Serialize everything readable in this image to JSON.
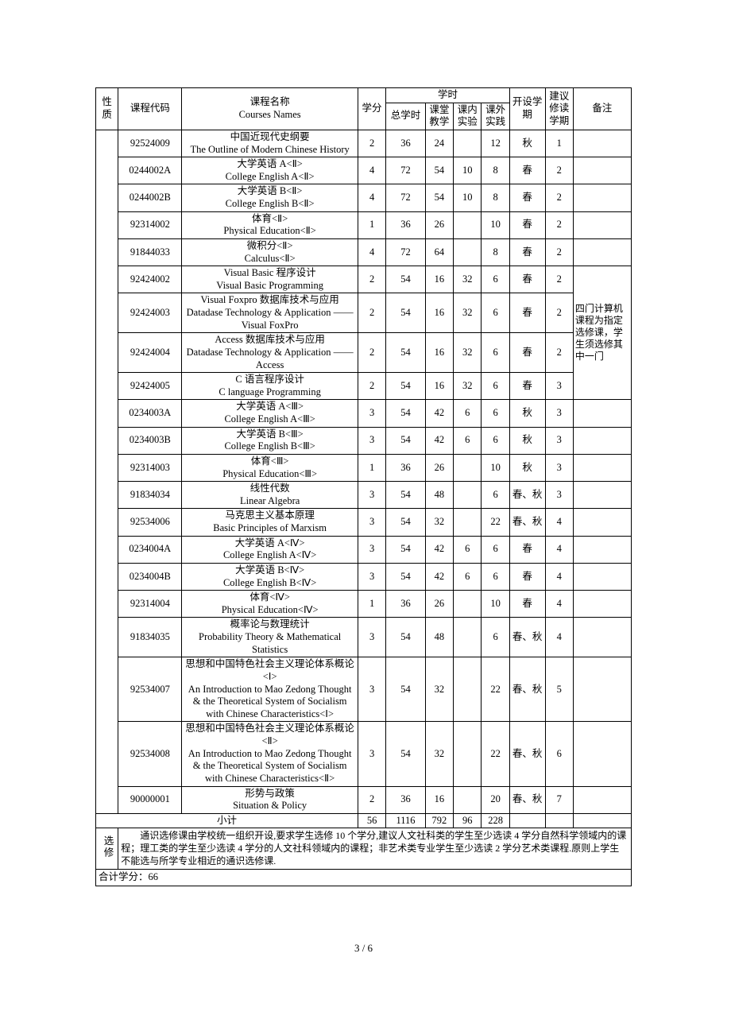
{
  "header": {
    "nature": "性质",
    "code": "课程代码",
    "name_cn": "课程名称",
    "name_en": "Courses Names",
    "credit": "学分",
    "hours_group": "学时",
    "total_hours": "总学时",
    "class_hours": "课堂教学",
    "lab_hours": "课内实验",
    "ext_hours": "课外实践",
    "semester": "开设学期",
    "suggest": "建议修读学期",
    "note": "备注"
  },
  "rows": [
    {
      "code": "92524009",
      "name": "中国近现代史纲要\nThe Outline of Modern Chinese History",
      "credit": "2",
      "total": "36",
      "class": "24",
      "lab": "",
      "ext": "12",
      "sem": "秋",
      "sug": "1",
      "note": ""
    },
    {
      "code": "0244002A",
      "name": "大学英语 A<Ⅱ>\nCollege English A<Ⅱ>",
      "credit": "4",
      "total": "72",
      "class": "54",
      "lab": "10",
      "ext": "8",
      "sem": "春",
      "sug": "2",
      "note": ""
    },
    {
      "code": "0244002B",
      "name": "大学英语 B<Ⅱ>\nCollege English B<Ⅱ>",
      "credit": "4",
      "total": "72",
      "class": "54",
      "lab": "10",
      "ext": "8",
      "sem": "春",
      "sug": "2",
      "note": ""
    },
    {
      "code": "92314002",
      "name": "体育<Ⅱ>\nPhysical Education<Ⅱ>",
      "credit": "1",
      "total": "36",
      "class": "26",
      "lab": "",
      "ext": "10",
      "sem": "春",
      "sug": "2",
      "note": ""
    },
    {
      "code": "91844033",
      "name": "微积分<Ⅱ>\nCalculus<Ⅱ>",
      "credit": "4",
      "total": "72",
      "class": "64",
      "lab": "",
      "ext": "8",
      "sem": "春",
      "sug": "2",
      "note": ""
    },
    {
      "code": "92424002",
      "name": "Visual Basic 程序设计\nVisual Basic Programming",
      "credit": "2",
      "total": "54",
      "class": "16",
      "lab": "32",
      "ext": "6",
      "sem": "春",
      "sug": "2",
      "note": ""
    },
    {
      "code": "92424003",
      "name": "Visual Foxpro 数据库技术与应用\nDatadase Technology & Application ——Visual FoxPro",
      "credit": "2",
      "total": "54",
      "class": "16",
      "lab": "32",
      "ext": "6",
      "sem": "春",
      "sug": "2",
      "note": "group"
    },
    {
      "code": "92424004",
      "name": "Access 数据库技术与应用\nDatadase Technology & Application ——Access",
      "credit": "2",
      "total": "54",
      "class": "16",
      "lab": "32",
      "ext": "6",
      "sem": "春",
      "sug": "2",
      "note": "group"
    },
    {
      "code": "92424005",
      "name": "C 语言程序设计\nC language Programming",
      "credit": "2",
      "total": "54",
      "class": "16",
      "lab": "32",
      "ext": "6",
      "sem": "春",
      "sug": "3",
      "note": "group"
    },
    {
      "code": "0234003A",
      "name": "大学英语 A<Ⅲ>\nCollege English A<Ⅲ>",
      "credit": "3",
      "total": "54",
      "class": "42",
      "lab": "6",
      "ext": "6",
      "sem": "秋",
      "sug": "3",
      "note": ""
    },
    {
      "code": "0234003B",
      "name": "大学英语 B<Ⅲ>\nCollege English B<Ⅲ>",
      "credit": "3",
      "total": "54",
      "class": "42",
      "lab": "6",
      "ext": "6",
      "sem": "秋",
      "sug": "3",
      "note": ""
    },
    {
      "code": "92314003",
      "name": "体育<Ⅲ>\nPhysical Education<Ⅲ>",
      "credit": "1",
      "total": "36",
      "class": "26",
      "lab": "",
      "ext": "10",
      "sem": "秋",
      "sug": "3",
      "note": ""
    },
    {
      "code": "91834034",
      "name": "线性代数\nLinear Algebra",
      "credit": "3",
      "total": "54",
      "class": "48",
      "lab": "",
      "ext": "6",
      "sem": "春、秋",
      "sug": "3",
      "note": ""
    },
    {
      "code": "92534006",
      "name": "马克思主义基本原理\nBasic Principles of Marxism",
      "credit": "3",
      "total": "54",
      "class": "32",
      "lab": "",
      "ext": "22",
      "sem": "春、秋",
      "sug": "4",
      "note": ""
    },
    {
      "code": "0234004A",
      "name": "大学英语 A<Ⅳ>\nCollege English A<Ⅳ>",
      "credit": "3",
      "total": "54",
      "class": "42",
      "lab": "6",
      "ext": "6",
      "sem": "春",
      "sug": "4",
      "note": ""
    },
    {
      "code": "0234004B",
      "name": "大学英语 B<Ⅳ>\nCollege English B<Ⅳ>",
      "credit": "3",
      "total": "54",
      "class": "42",
      "lab": "6",
      "ext": "6",
      "sem": "春",
      "sug": "4",
      "note": ""
    },
    {
      "code": "92314004",
      "name": "体育<Ⅳ>\nPhysical Education<Ⅳ>",
      "credit": "1",
      "total": "36",
      "class": "26",
      "lab": "",
      "ext": "10",
      "sem": "春",
      "sug": "4",
      "note": ""
    },
    {
      "code": "91834035",
      "name": "概率论与数理统计\nProbability Theory & Mathematical Statistics",
      "credit": "3",
      "total": "54",
      "class": "48",
      "lab": "",
      "ext": "6",
      "sem": "春、秋",
      "sug": "4",
      "note": ""
    },
    {
      "code": "92534007",
      "name": "思想和中国特色社会主义理论体系概论<Ⅰ>\nAn Introduction to Mao Zedong Thought & the Theoretical System of Socialism with Chinese Characteristics<Ⅰ>",
      "credit": "3",
      "total": "54",
      "class": "32",
      "lab": "",
      "ext": "22",
      "sem": "春、秋",
      "sug": "5",
      "note": ""
    },
    {
      "code": "92534008",
      "name": "思想和中国特色社会主义理论体系概论<Ⅱ>\nAn Introduction to Mao Zedong Thought & the Theoretical System of Socialism with Chinese Characteristics<Ⅱ>",
      "credit": "3",
      "total": "54",
      "class": "32",
      "lab": "",
      "ext": "22",
      "sem": "春、秋",
      "sug": "6",
      "note": ""
    },
    {
      "code": "90000001",
      "name": "形势与政策\nSituation & Policy",
      "credit": "2",
      "total": "36",
      "class": "16",
      "lab": "",
      "ext": "20",
      "sem": "春、秋",
      "sug": "7",
      "note": ""
    }
  ],
  "group_note": "四门计算机课程为指定选修课，学生须选修其中一门",
  "subtotal": {
    "label": "小计",
    "credit": "56",
    "total": "1116",
    "class": "792",
    "lab": "96",
    "ext": "228",
    "sem": "",
    "sug": "",
    "note": ""
  },
  "elective_label": "选修",
  "elective_note": "通识选修课由学校统一组织开设,要求学生选修 10 个学分,建议人文社科类的学生至少选读 4 学分自然科学领域内的课程；理工类的学生至少选读 4 学分的人文社科领域内的课程；非艺术类专业学生至少选读 2 学分艺术类课程.原则上学生不能选与所学专业相近的通识选修课.",
  "summary": "合计学分：66",
  "page_number": "3 / 6"
}
